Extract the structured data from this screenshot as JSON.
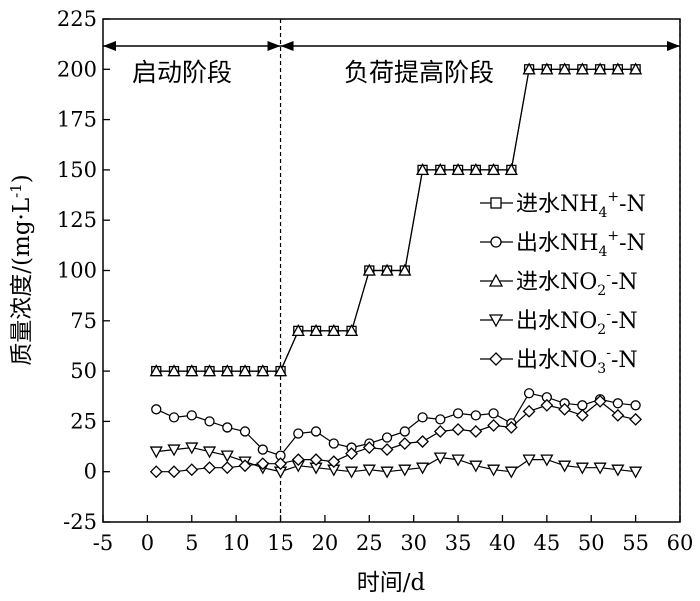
{
  "chart_data": {
    "type": "line",
    "title": "",
    "xlabel": "时间/d",
    "ylabel": "质量浓度/(mg·L",
    "ylabel_sup": "-1",
    "ylabel_close": ")",
    "xlim": [
      -5,
      60
    ],
    "ylim": [
      -25,
      225
    ],
    "xticks": [
      -5,
      0,
      5,
      10,
      15,
      20,
      25,
      30,
      35,
      40,
      45,
      50,
      55,
      60
    ],
    "yticks": [
      -25,
      0,
      25,
      50,
      75,
      100,
      125,
      150,
      175,
      200,
      225
    ],
    "grid": false,
    "legend_position": "right",
    "phases": [
      {
        "label": "启动阶段",
        "x_start": -5,
        "x_end": 15
      },
      {
        "label": "负荷提高阶段",
        "x_start": 15,
        "x_end": 60
      }
    ],
    "phase_divider_x": [
      15,
      60
    ],
    "series": [
      {
        "name": "进水NH4+-N",
        "label_parts": {
          "base": "进水NH",
          "sub": "4",
          "sup": "+",
          "tail": "-N"
        },
        "marker": "square",
        "x": [
          1,
          3,
          5,
          7,
          9,
          11,
          13,
          15,
          17,
          19,
          21,
          23,
          25,
          27,
          29,
          31,
          33,
          35,
          37,
          39,
          41,
          43,
          45,
          47,
          49,
          51,
          53,
          55
        ],
        "y": [
          50,
          50,
          50,
          50,
          50,
          50,
          50,
          50,
          70,
          70,
          70,
          70,
          100,
          100,
          100,
          150,
          150,
          150,
          150,
          150,
          150,
          200,
          200,
          200,
          200,
          200,
          200,
          200
        ]
      },
      {
        "name": "出水NH4+-N",
        "label_parts": {
          "base": "出水NH",
          "sub": "4",
          "sup": "+",
          "tail": "-N"
        },
        "marker": "circle",
        "x": [
          1,
          3,
          5,
          7,
          9,
          11,
          13,
          15,
          17,
          19,
          21,
          23,
          25,
          27,
          29,
          31,
          33,
          35,
          37,
          39,
          41,
          43,
          45,
          47,
          49,
          51,
          53,
          55
        ],
        "y": [
          31,
          27,
          28,
          25,
          22,
          20,
          11,
          8,
          19,
          20,
          14,
          12,
          14,
          17,
          20,
          27,
          26,
          29,
          28,
          29,
          24,
          39,
          37,
          34,
          33,
          36,
          34,
          33
        ]
      },
      {
        "name": "进水NO2--N",
        "label_parts": {
          "base": "进水NO",
          "sub": "2",
          "sup": "-",
          "tail": "-N"
        },
        "marker": "triangle-up",
        "x": [
          1,
          3,
          5,
          7,
          9,
          11,
          13,
          15,
          17,
          19,
          21,
          23,
          25,
          27,
          29,
          31,
          33,
          35,
          37,
          39,
          41,
          43,
          45,
          47,
          49,
          51,
          53,
          55
        ],
        "y": [
          50,
          50,
          50,
          50,
          50,
          50,
          50,
          50,
          70,
          70,
          70,
          70,
          100,
          100,
          100,
          150,
          150,
          150,
          150,
          150,
          150,
          200,
          200,
          200,
          200,
          200,
          200,
          200
        ]
      },
      {
        "name": "出水NO2--N",
        "label_parts": {
          "base": "出水NO",
          "sub": "2",
          "sup": "-",
          "tail": "-N"
        },
        "marker": "triangle-down",
        "x": [
          1,
          3,
          5,
          7,
          9,
          11,
          13,
          15,
          17,
          19,
          21,
          23,
          25,
          27,
          29,
          31,
          33,
          35,
          37,
          39,
          41,
          43,
          45,
          47,
          49,
          51,
          53,
          55
        ],
        "y": [
          10,
          11,
          12,
          10,
          8,
          5,
          2,
          0,
          3,
          2,
          1,
          0,
          1,
          0,
          1,
          2,
          7,
          6,
          3,
          1,
          0,
          6,
          6,
          3,
          2,
          2,
          1,
          0
        ]
      },
      {
        "name": "出水NO3--N",
        "label_parts": {
          "base": "出水NO",
          "sub": "3",
          "sup": "-",
          "tail": "-N"
        },
        "marker": "diamond",
        "x": [
          1,
          3,
          5,
          7,
          9,
          11,
          13,
          15,
          17,
          19,
          21,
          23,
          25,
          27,
          29,
          31,
          33,
          35,
          37,
          39,
          41,
          43,
          45,
          47,
          49,
          51,
          53,
          55
        ],
        "y": [
          0,
          0,
          1,
          2,
          2,
          3,
          4,
          4,
          6,
          6,
          5,
          9,
          12,
          11,
          14,
          15,
          20,
          21,
          20,
          23,
          22,
          30,
          33,
          31,
          28,
          35,
          28,
          26
        ]
      }
    ]
  }
}
